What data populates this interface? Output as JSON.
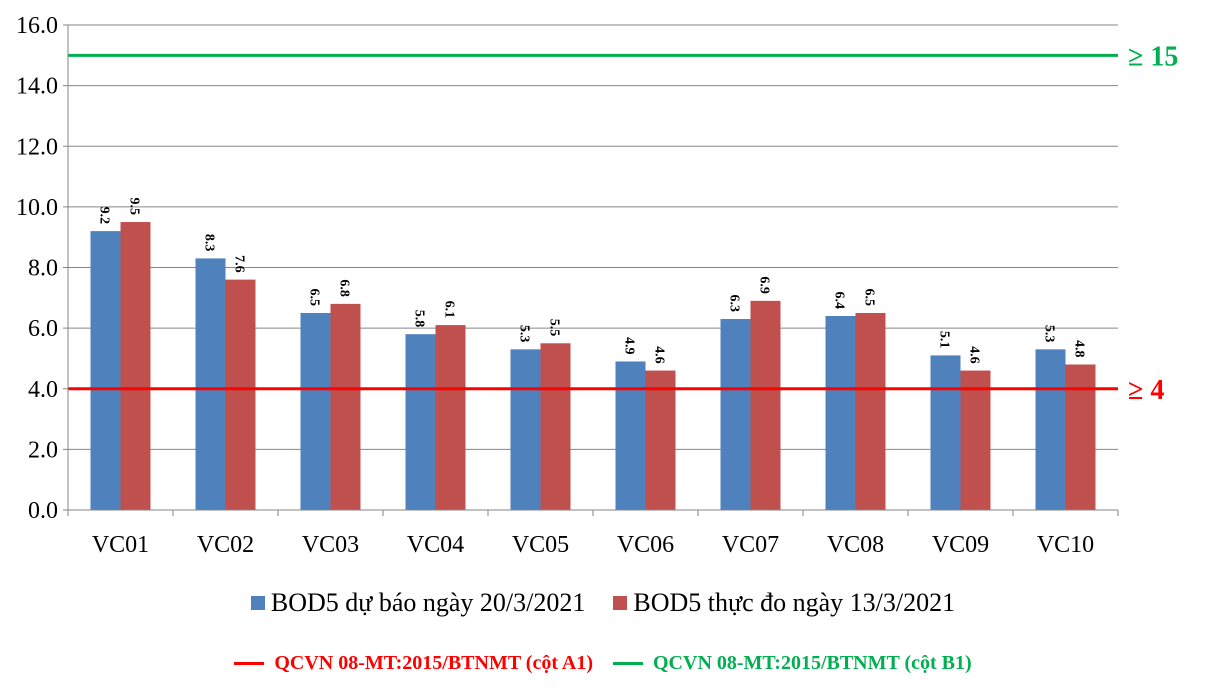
{
  "chart_data": {
    "type": "bar",
    "categories": [
      "VC01",
      "VC02",
      "VC03",
      "VC04",
      "VC05",
      "VC06",
      "VC07",
      "VC08",
      "VC09",
      "VC10"
    ],
    "series": [
      {
        "name": "BOD5 dự báo ngày 20/3/2021",
        "color": "#4f81bd",
        "values": [
          9.2,
          8.3,
          6.5,
          5.8,
          5.3,
          4.9,
          6.3,
          6.4,
          5.1,
          5.3
        ]
      },
      {
        "name": "BOD5 thực đo ngày 13/3/2021",
        "color": "#c0504d",
        "values": [
          9.5,
          7.6,
          6.8,
          6.1,
          5.5,
          4.6,
          6.9,
          6.5,
          4.6,
          4.8
        ]
      }
    ],
    "y_ticks": [
      "0.0",
      "2.0",
      "4.0",
      "6.0",
      "8.0",
      "10.0",
      "12.0",
      "14.0",
      "16.0"
    ],
    "ylim": [
      0,
      16
    ],
    "grid": true,
    "legend_placement": "bottom",
    "reference_lines": [
      {
        "name": "QCVN 08-MT:2015/BTNMT (cột A1)",
        "value": 4,
        "label": "≥ 4",
        "color": "#ff0000"
      },
      {
        "name": "QCVN 08-MT:2015/BTNMT (cột B1)",
        "value": 15,
        "label": "≥ 15",
        "color": "#00b050"
      }
    ]
  }
}
